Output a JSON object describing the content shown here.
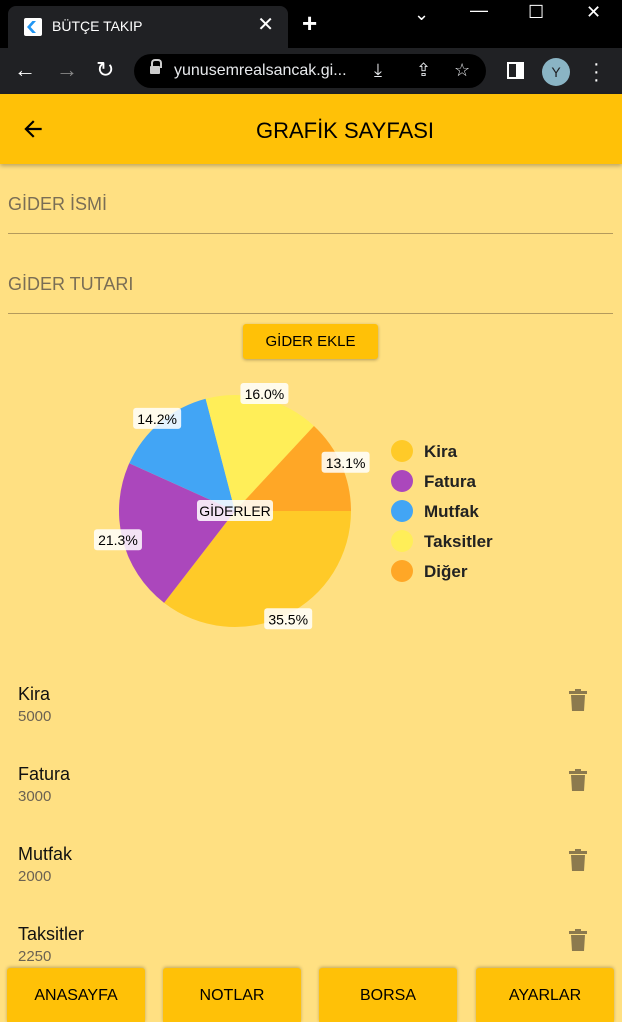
{
  "browser": {
    "tab_title": "BÜTÇE TAKIP",
    "url": "yunusemrealsancak.gi...",
    "avatar_letter": "Y"
  },
  "appbar": {
    "title": "GRAFİK SAYFASI"
  },
  "form": {
    "name_placeholder": "GİDER İSMİ",
    "amount_placeholder": "GİDER TUTARI",
    "add_label": "GİDER EKLE"
  },
  "chart_data": {
    "type": "pie",
    "center_label": "GİDERLER",
    "legend_placement": "right",
    "slices": [
      {
        "name": "Kira",
        "value": 35.5,
        "label": "35.5%",
        "color": "#FFCA28"
      },
      {
        "name": "Fatura",
        "value": 21.3,
        "label": "21.3%",
        "color": "#AB47BC"
      },
      {
        "name": "Mutfak",
        "value": 14.2,
        "label": "14.2%",
        "color": "#42A5F5"
      },
      {
        "name": "Taksitler",
        "value": 16.0,
        "label": "16.0%",
        "color": "#FFEE58"
      },
      {
        "name": "Diğer",
        "value": 13.1,
        "label": "13.1%",
        "color": "#FFA726"
      }
    ]
  },
  "expenses": [
    {
      "name": "Kira",
      "value": "5000"
    },
    {
      "name": "Fatura",
      "value": "3000"
    },
    {
      "name": "Mutfak",
      "value": "2000"
    },
    {
      "name": "Taksitler",
      "value": "2250"
    }
  ],
  "bottom_nav": {
    "home": "ANASAYFA",
    "notes": "NOTLAR",
    "stock": "BORSA",
    "settings": "AYARLAR"
  }
}
